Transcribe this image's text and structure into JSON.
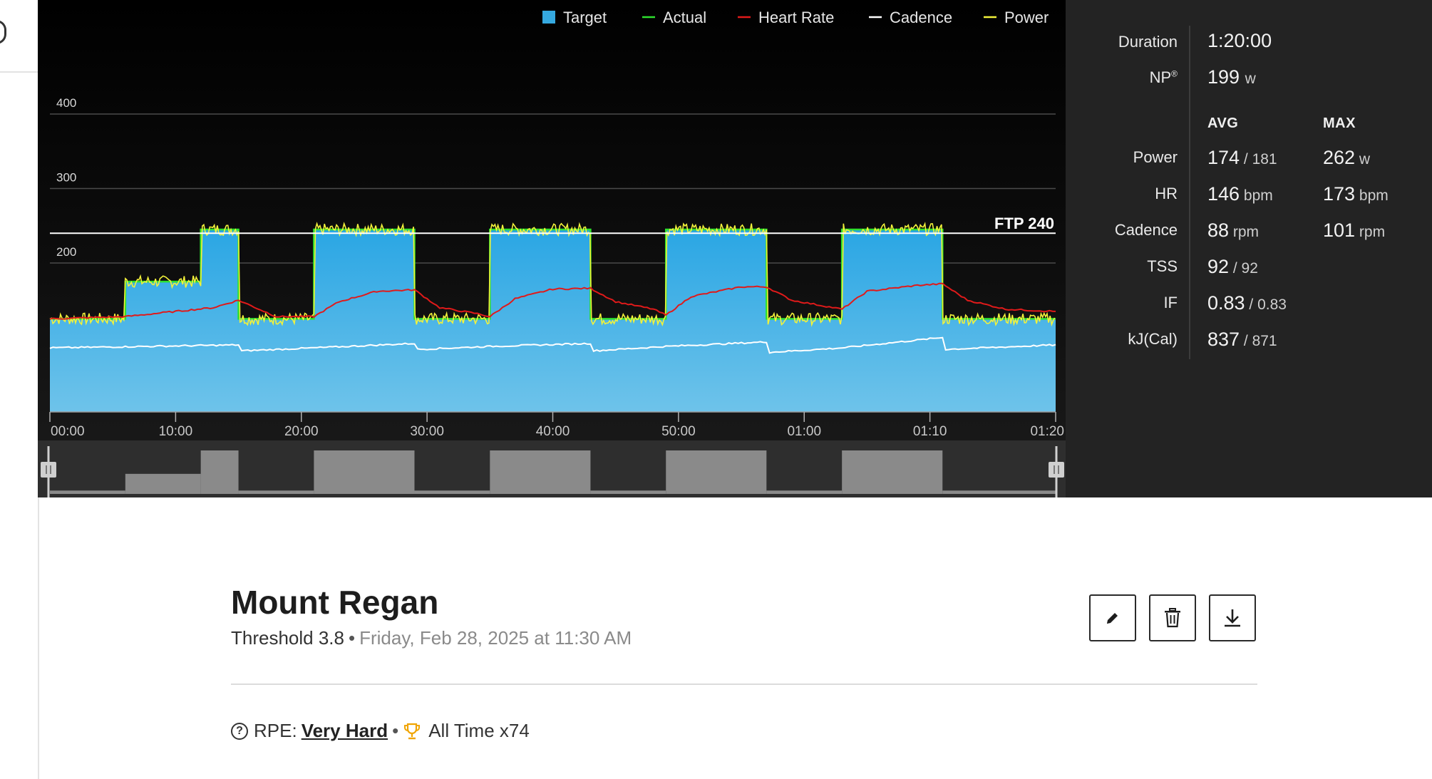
{
  "legend": [
    {
      "label": "Target",
      "color": "#35a9e0",
      "swatch": "square"
    },
    {
      "label": "Actual",
      "color": "#2ee02e",
      "swatch": "line"
    },
    {
      "label": "Heart Rate",
      "color": "#e01a1a",
      "swatch": "line"
    },
    {
      "label": "Cadence",
      "color": "#ffffff",
      "swatch": "line"
    },
    {
      "label": "Power",
      "color": "#f2f23a",
      "swatch": "line"
    }
  ],
  "ftp_label": "FTP 240",
  "chart_data": {
    "type": "area",
    "title": "",
    "xlabel": "",
    "ylabel": "",
    "x_unit": "minutes",
    "xlim": [
      0,
      80
    ],
    "ylim": [
      0,
      430
    ],
    "y_ticks": [
      200,
      300,
      400
    ],
    "y_tick_labels": [
      "200",
      "300",
      "400"
    ],
    "x_ticks": [
      0,
      10,
      20,
      30,
      40,
      50,
      60,
      70,
      80
    ],
    "x_tick_labels": [
      "00:00",
      "10:00",
      "20:00",
      "30:00",
      "40:00",
      "50:00",
      "01:00",
      "01:10",
      "01:20"
    ],
    "ftp": 240,
    "grid": true,
    "legend_position": "top-right",
    "series": [
      {
        "name": "Target",
        "color": "#35a9e0",
        "segments": [
          {
            "start": 0,
            "end": 6,
            "watts": 125
          },
          {
            "start": 6,
            "end": 12,
            "watts": 175
          },
          {
            "start": 12,
            "end": 15,
            "watts": 245
          },
          {
            "start": 15,
            "end": 21,
            "watts": 125
          },
          {
            "start": 21,
            "end": 29,
            "watts": 245
          },
          {
            "start": 29,
            "end": 35,
            "watts": 125
          },
          {
            "start": 35,
            "end": 43,
            "watts": 245
          },
          {
            "start": 43,
            "end": 49,
            "watts": 125
          },
          {
            "start": 49,
            "end": 57,
            "watts": 245
          },
          {
            "start": 57,
            "end": 63,
            "watts": 125
          },
          {
            "start": 63,
            "end": 71,
            "watts": 245
          },
          {
            "start": 71,
            "end": 80,
            "watts": 125
          }
        ]
      },
      {
        "name": "Heart Rate",
        "color": "#e01a1a",
        "points": [
          [
            0,
            125
          ],
          [
            6,
            128
          ],
          [
            10,
            135
          ],
          [
            13,
            140
          ],
          [
            15,
            150
          ],
          [
            18,
            128
          ],
          [
            21,
            128
          ],
          [
            23,
            148
          ],
          [
            26,
            162
          ],
          [
            29,
            164
          ],
          [
            31,
            140
          ],
          [
            34,
            132
          ],
          [
            35,
            128
          ],
          [
            37,
            152
          ],
          [
            40,
            165
          ],
          [
            43,
            166
          ],
          [
            45,
            148
          ],
          [
            48,
            138
          ],
          [
            49,
            130
          ],
          [
            51,
            155
          ],
          [
            55,
            168
          ],
          [
            57,
            168
          ],
          [
            59,
            150
          ],
          [
            63,
            138
          ],
          [
            65,
            162
          ],
          [
            69,
            170
          ],
          [
            71,
            172
          ],
          [
            73,
            150
          ],
          [
            76,
            138
          ],
          [
            80,
            135
          ]
        ]
      },
      {
        "name": "Cadence",
        "color": "#ffffff",
        "points": [
          [
            0,
            86
          ],
          [
            15,
            90
          ],
          [
            15.2,
            82
          ],
          [
            21,
            86
          ],
          [
            29,
            92
          ],
          [
            29.2,
            84
          ],
          [
            35,
            88
          ],
          [
            43,
            92
          ],
          [
            43.2,
            82
          ],
          [
            49,
            88
          ],
          [
            57,
            94
          ],
          [
            57.2,
            80
          ],
          [
            63,
            86
          ],
          [
            71,
            100
          ],
          [
            71.2,
            84
          ],
          [
            80,
            90
          ]
        ]
      }
    ]
  },
  "stats": {
    "duration_label": "Duration",
    "duration_value": "1:20:00",
    "np_label": "NP",
    "np_sup": "®",
    "np_value": "199",
    "np_unit": "w",
    "avg_head": "AVG",
    "max_head": "MAX",
    "rows": [
      {
        "label": "Power",
        "avg": "174",
        "avg_sub": "/ 181",
        "max": "262",
        "max_unit": "w"
      },
      {
        "label": "HR",
        "avg": "146",
        "avg_sub": "bpm",
        "max": "173",
        "max_unit": "bpm"
      },
      {
        "label": "Cadence",
        "avg": "88",
        "avg_sub": "rpm",
        "max": "101",
        "max_unit": "rpm"
      },
      {
        "label": "TSS",
        "avg": "92",
        "avg_sub": "/ 92",
        "max": "",
        "max_unit": ""
      },
      {
        "label": "IF",
        "avg": "0.83",
        "avg_sub": "/ 0.83",
        "max": "",
        "max_unit": ""
      },
      {
        "label": "kJ(Cal)",
        "avg": "837",
        "avg_sub": "/ 871",
        "max": "",
        "max_unit": ""
      }
    ]
  },
  "workout": {
    "title": "Mount Regan",
    "category": "Threshold 3.8",
    "date": "Friday, Feb 28, 2025 at 11:30 AM",
    "rpe_label": "RPE:",
    "rpe_value": "Very Hard",
    "achievement": "All Time x74"
  },
  "icons": [
    "edit-pencil-icon",
    "trash-icon",
    "download-icon",
    "help-circle-icon",
    "trophy-icon",
    "scrub-handle-icon"
  ]
}
